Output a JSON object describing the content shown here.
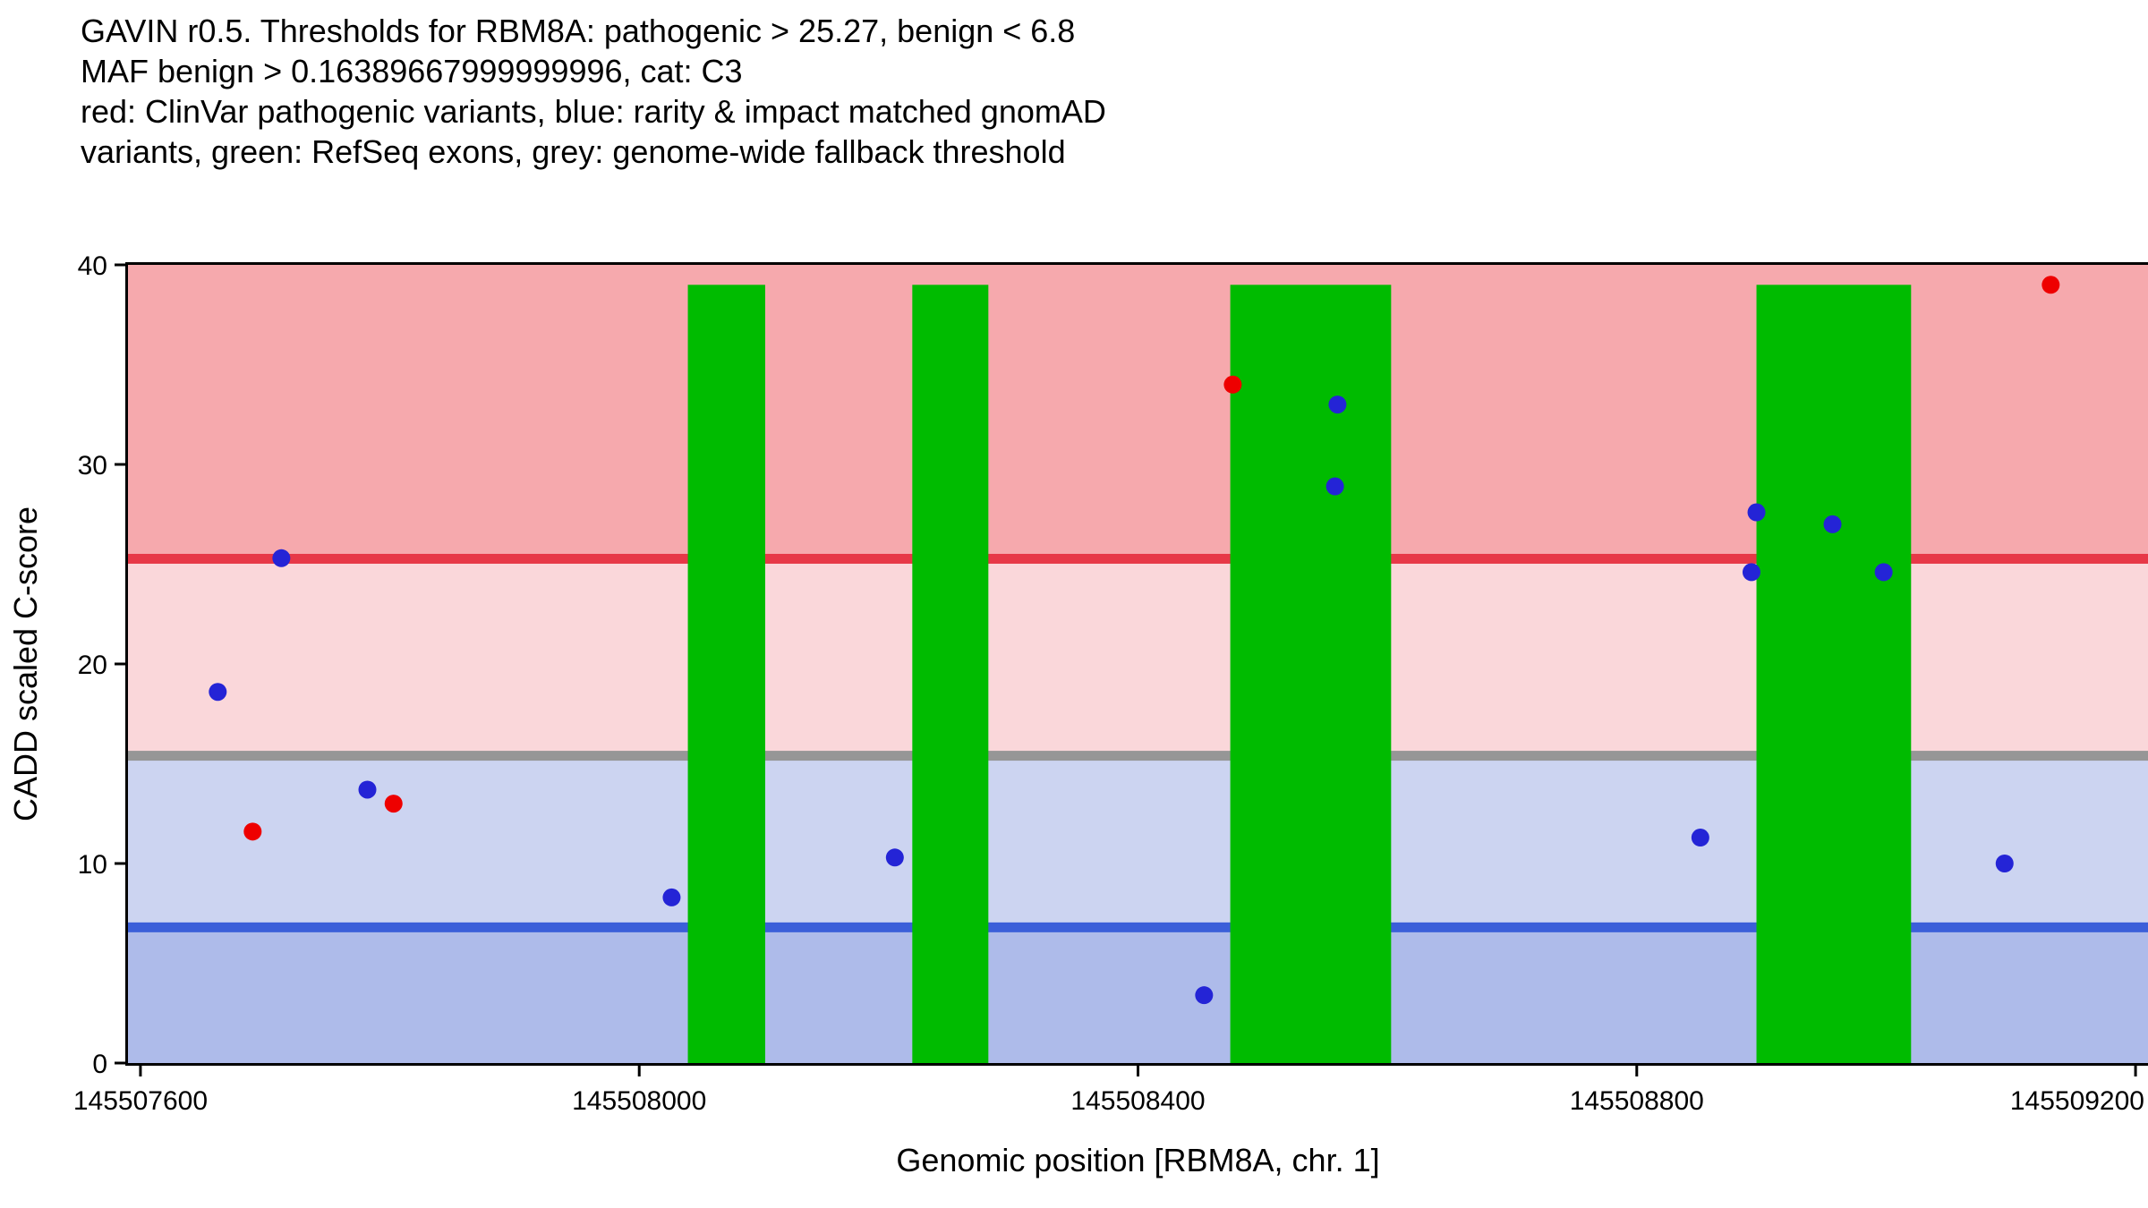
{
  "chart_data": {
    "type": "scatter",
    "title_lines": [
      "GAVIN r0.5. Thresholds for RBM8A: pathogenic > 25.27, benign < 6.8",
      "MAF benign > 0.16389667999999996, cat: C3",
      "red: ClinVar pathogenic variants, blue: rarity & impact matched gnomAD",
      "variants, green: RefSeq exons, grey: genome-wide fallback threshold"
    ],
    "xlabel": "Genomic position [RBM8A, chr. 1]",
    "ylabel": "CADD scaled C-score",
    "xlim": [
      145507590,
      145509210
    ],
    "ylim": [
      0,
      40
    ],
    "x_ticks": [
      145507600,
      145508000,
      145508400,
      145508800,
      145509200
    ],
    "y_ticks": [
      0,
      10,
      20,
      30,
      40
    ],
    "zones": [
      {
        "label": "benign-region",
        "from": 0,
        "to": 6.8,
        "color": "#AEBBEA"
      },
      {
        "label": "benign-to-fallback-region",
        "from": 6.8,
        "to": 15.4,
        "color": "#CCD4F1"
      },
      {
        "label": "fallback-to-pathogenic-region",
        "from": 15.4,
        "to": 25.27,
        "color": "#FAD7DA"
      },
      {
        "label": "pathogenic-region",
        "from": 25.27,
        "to": 40,
        "color": "#F6A9AD"
      }
    ],
    "threshold_lines": [
      {
        "label": "pathogenic-threshold",
        "value": 25.27,
        "color": "#E73847"
      },
      {
        "label": "genome-wide-fallback-threshold",
        "value": 15.4,
        "color": "#969696"
      },
      {
        "label": "benign-threshold",
        "value": 6.8,
        "color": "#3B5FD9"
      }
    ],
    "exons": {
      "label": "RefSeq exons",
      "color": "#00BB00",
      "top_value": 39,
      "ranges": [
        {
          "start": 145508039,
          "end": 145508101
        },
        {
          "start": 145508219,
          "end": 145508280
        },
        {
          "start": 145508474,
          "end": 145508603
        },
        {
          "start": 145508896,
          "end": 145509020
        }
      ]
    },
    "series": [
      {
        "key": "clinvar-pathogenic",
        "name": "ClinVar pathogenic variants",
        "color": "#EE0000",
        "points": [
          [
            145507690,
            11.6
          ],
          [
            145507803,
            13.0
          ],
          [
            145508476,
            34.0
          ],
          [
            145509132,
            39.0
          ]
        ]
      },
      {
        "key": "gnomad-matched",
        "name": "rarity & impact matched gnomAD variants",
        "color": "#2424D6",
        "points": [
          [
            145507662,
            18.6
          ],
          [
            145507713,
            25.3
          ],
          [
            145507782,
            13.7
          ],
          [
            145508026,
            8.3
          ],
          [
            145508205,
            10.3
          ],
          [
            145508453,
            3.4
          ],
          [
            145508558,
            28.9
          ],
          [
            145508560,
            33.0
          ],
          [
            145508851,
            11.3
          ],
          [
            145508892,
            24.6
          ],
          [
            145508896,
            27.6
          ],
          [
            145508957,
            27.0
          ],
          [
            145508998,
            24.6
          ],
          [
            145509095,
            10.0
          ]
        ]
      }
    ],
    "axis_color": "#000000",
    "grid": false,
    "legend_position": "none"
  }
}
